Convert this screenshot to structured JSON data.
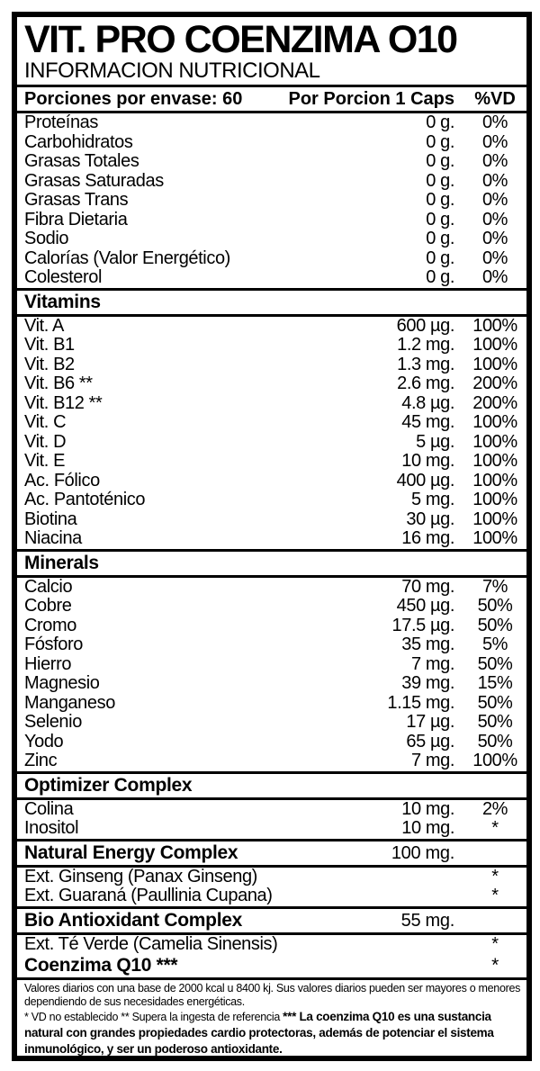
{
  "colors": {
    "ink": "#000000",
    "background": "#ffffff"
  },
  "label": {
    "title": "VIT. PRO COENZIMA O10",
    "subtitle": "INFORMACION NUTRICIONAL",
    "header": {
      "servings": "Porciones por envase: 60",
      "per_serving": "Por Porcion 1 Caps",
      "dv": "%VD"
    },
    "sections": [
      {
        "type": "rows",
        "rows": [
          {
            "name": "Proteínas",
            "amount": "0 g.",
            "dv": "0%"
          },
          {
            "name": "Carbohidratos",
            "amount": "0 g.",
            "dv": "0%"
          },
          {
            "name": "Grasas Totales",
            "amount": "0 g.",
            "dv": "0%"
          },
          {
            "name": "Grasas Saturadas",
            "amount": "0 g.",
            "dv": "0%"
          },
          {
            "name": "Grasas Trans",
            "amount": "0 g.",
            "dv": "0%"
          },
          {
            "name": "Fibra Dietaria",
            "amount": "0 g.",
            "dv": "0%"
          },
          {
            "name": "Sodio",
            "amount": "0 g.",
            "dv": "0%"
          },
          {
            "name": "Calorías (Valor Energético)",
            "amount": "0 g.",
            "dv": "0%"
          },
          {
            "name": "Colesterol",
            "amount": "0 g.",
            "dv": "0%"
          }
        ]
      },
      {
        "type": "band",
        "label": "Vitamins"
      },
      {
        "type": "rows",
        "rows": [
          {
            "name": "Vit. A",
            "amount": "600 µg.",
            "dv": "100%"
          },
          {
            "name": "Vit. B1",
            "amount": "1.2 mg.",
            "dv": "100%"
          },
          {
            "name": "Vit. B2",
            "amount": "1.3 mg.",
            "dv": "100%"
          },
          {
            "name": "Vit. B6 **",
            "amount": "2.6 mg.",
            "dv": "200%"
          },
          {
            "name": "Vit. B12 **",
            "amount": "4.8 µg.",
            "dv": "200%"
          },
          {
            "name": "Vit. C",
            "amount": "45 mg.",
            "dv": "100%"
          },
          {
            "name": "Vit. D",
            "amount": "5 µg.",
            "dv": "100%"
          },
          {
            "name": "Vit. E",
            "amount": "10 mg.",
            "dv": "100%"
          },
          {
            "name": "Ac. Fólico",
            "amount": "400 µg.",
            "dv": "100%"
          },
          {
            "name": "Ac. Pantoténico",
            "amount": "5 mg.",
            "dv": "100%"
          },
          {
            "name": "Biotina",
            "amount": "30 µg.",
            "dv": "100%"
          },
          {
            "name": "Niacina",
            "amount": "16 mg.",
            "dv": "100%"
          }
        ]
      },
      {
        "type": "band",
        "label": "Minerals"
      },
      {
        "type": "rows",
        "rows": [
          {
            "name": "Calcio",
            "amount": "70 mg.",
            "dv": "7%"
          },
          {
            "name": "Cobre",
            "amount": "450 µg.",
            "dv": "50%"
          },
          {
            "name": "Cromo",
            "amount": "17.5 µg.",
            "dv": "50%"
          },
          {
            "name": "Fósforo",
            "amount": "35 mg.",
            "dv": "5%"
          },
          {
            "name": "Hierro",
            "amount": "7 mg.",
            "dv": "50%"
          },
          {
            "name": "Magnesio",
            "amount": "39 mg.",
            "dv": "15%"
          },
          {
            "name": "Manganeso",
            "amount": "1.15 mg.",
            "dv": "50%"
          },
          {
            "name": "Selenio",
            "amount": "17 µg.",
            "dv": "50%"
          },
          {
            "name": "Yodo",
            "amount": "65 µg.",
            "dv": "50%"
          },
          {
            "name": "Zinc",
            "amount": "7 mg.",
            "dv": "100%"
          }
        ]
      },
      {
        "type": "band",
        "label": "Optimizer Complex"
      },
      {
        "type": "rows",
        "rows": [
          {
            "name": "Colina",
            "amount": "10 mg.",
            "dv": "2%"
          },
          {
            "name": "Inositol",
            "amount": "10 mg.",
            "dv": "*"
          }
        ]
      },
      {
        "type": "complex",
        "name": "Natural Energy Complex",
        "amount": "100 mg.",
        "dv": "",
        "no_top": false
      },
      {
        "type": "rows",
        "rows": [
          {
            "name": "Ext. Ginseng (Panax Ginseng)",
            "amount": "",
            "dv": "*"
          },
          {
            "name": "Ext. Guaraná (Paullinia Cupana)",
            "amount": "",
            "dv": "*"
          }
        ]
      },
      {
        "type": "complex",
        "name": "Bio Antioxidant Complex",
        "amount": "55 mg.",
        "dv": "",
        "no_top": false
      },
      {
        "type": "rows",
        "rows": [
          {
            "name": "Ext. Té Verde (Camelia Sinensis)",
            "amount": "",
            "dv": "*"
          }
        ]
      },
      {
        "type": "complex",
        "name": "Coenzima Q10 ***",
        "amount": "",
        "dv": "*",
        "no_top": true
      }
    ],
    "footnotes": {
      "daily_values": "Valores diarios con una base de 2000 kcal u 8400 kj. Sus valores diarios pueden ser mayores o menores dependiendo de sus necesidades energéticas.",
      "reference_plain": "* VD no establecido ** Supera la ingesta de referencia ",
      "reference_bold": "*** La coenzima Q10 es una sustancia natural con grandes propiedades cardio protectoras, además de potenciar el sistema inmunológico, y ser un poderoso antioxidante."
    }
  }
}
